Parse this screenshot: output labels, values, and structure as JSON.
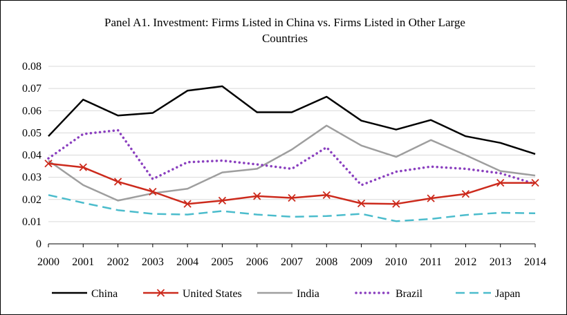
{
  "chart_data": {
    "type": "line",
    "title": "Panel A1. Investment: Firms Listed in China vs. Firms Listed in Other Large Countries",
    "title_lines": [
      "Panel A1. Investment: Firms Listed in China vs. Firms Listed in Other Large",
      "Countries"
    ],
    "xlabel": "",
    "ylabel": "",
    "x": [
      "2000",
      "2001",
      "2002",
      "2003",
      "2004",
      "2005",
      "2006",
      "2007",
      "2008",
      "2009",
      "2010",
      "2011",
      "2012",
      "2013",
      "2014"
    ],
    "ylim": [
      0,
      0.08
    ],
    "yticks": [
      "0",
      "0.01",
      "0.02",
      "0.03",
      "0.04",
      "0.05",
      "0.06",
      "0.07",
      "0.08"
    ],
    "grid": "horizontal",
    "legend": "bottom",
    "series": [
      {
        "name": "China",
        "color": "#000000",
        "style": "solid",
        "values": [
          0.0485,
          0.065,
          0.0578,
          0.059,
          0.069,
          0.071,
          0.0593,
          0.0593,
          0.0663,
          0.0555,
          0.0515,
          0.0558,
          0.0485,
          0.0455,
          0.0405
        ]
      },
      {
        "name": "United States",
        "color": "#cc2a1c",
        "style": "solid-x",
        "values": [
          0.0362,
          0.0345,
          0.028,
          0.0235,
          0.018,
          0.0195,
          0.0215,
          0.0207,
          0.022,
          0.0182,
          0.018,
          0.0205,
          0.0225,
          0.0275,
          0.0275
        ]
      },
      {
        "name": "India",
        "color": "#9e9e9e",
        "style": "solid",
        "values": [
          0.0375,
          0.0265,
          0.0195,
          0.0228,
          0.0248,
          0.0322,
          0.0338,
          0.0425,
          0.0533,
          0.0443,
          0.0392,
          0.0468,
          0.04,
          0.0328,
          0.0308
        ]
      },
      {
        "name": "Brazil",
        "color": "#8a3fbf",
        "style": "dotted",
        "values": [
          0.0385,
          0.0495,
          0.0512,
          0.0292,
          0.0368,
          0.0375,
          0.0358,
          0.0338,
          0.0435,
          0.0265,
          0.0325,
          0.0348,
          0.0338,
          0.0318,
          0.027
        ]
      },
      {
        "name": "Japan",
        "color": "#4bbccc",
        "style": "dashed",
        "values": [
          0.022,
          0.0185,
          0.0152,
          0.0135,
          0.0132,
          0.0148,
          0.0132,
          0.0122,
          0.0125,
          0.0135,
          0.0102,
          0.0112,
          0.013,
          0.014,
          0.0138
        ]
      }
    ]
  }
}
